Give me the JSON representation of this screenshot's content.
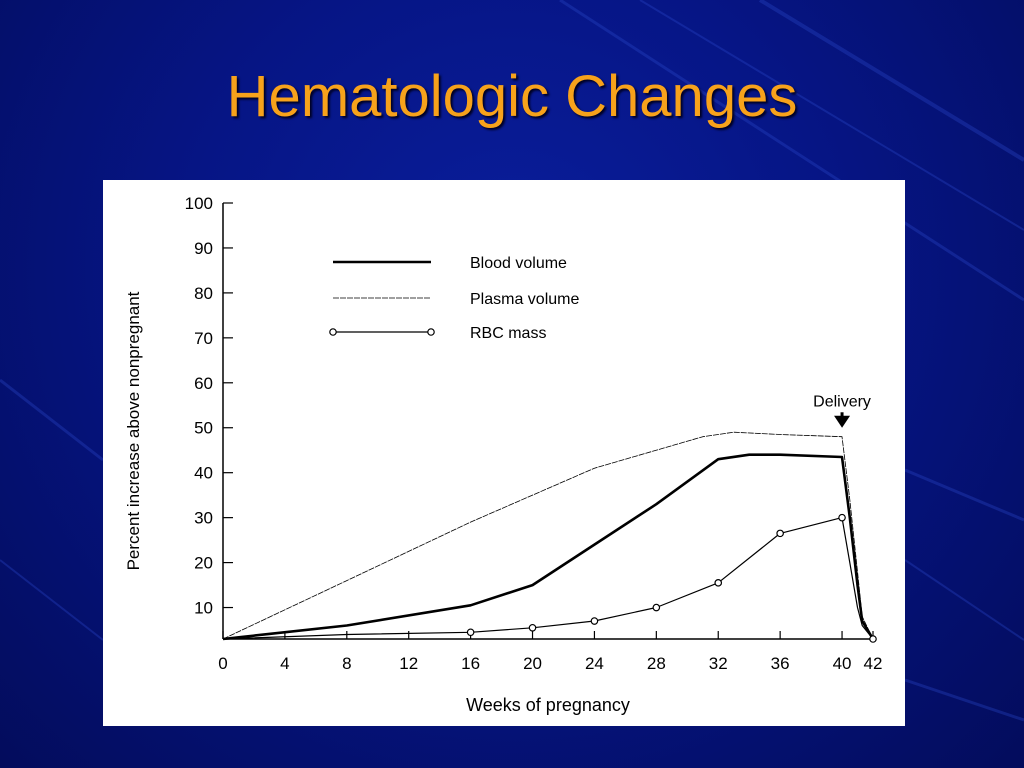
{
  "slide": {
    "title": "Hematologic Changes"
  },
  "colors": {
    "background": "#061585",
    "title": "#f7a21b",
    "panel": "#ffffff",
    "ink": "#000000"
  },
  "chart_data": {
    "type": "line",
    "title": "",
    "xlabel": "Weeks of pregnancy",
    "ylabel": "Percent increase above nonpregnant",
    "xlim": [
      0,
      42
    ],
    "ylim": [
      3,
      100
    ],
    "x_ticks": [
      0,
      4,
      8,
      12,
      16,
      20,
      24,
      28,
      32,
      36,
      40,
      42
    ],
    "y_ticks": [
      10,
      20,
      30,
      40,
      50,
      60,
      70,
      80,
      90,
      100
    ],
    "grid": false,
    "legend_position": "top-left",
    "series": [
      {
        "name": "Blood volume",
        "style": "thick",
        "x": [
          0,
          8,
          16,
          20,
          24,
          28,
          32,
          34,
          36,
          40,
          40.5,
          41,
          41.3,
          42
        ],
        "y": [
          3,
          6,
          10.5,
          15,
          24,
          33,
          43,
          44,
          44,
          43.5,
          30,
          15,
          7,
          3
        ]
      },
      {
        "name": "Plasma volume",
        "style": "thin",
        "x": [
          0,
          8,
          16,
          24,
          31,
          33,
          36,
          40,
          40.5,
          41,
          41.3,
          42
        ],
        "y": [
          3,
          16,
          29,
          41,
          48,
          49,
          48.5,
          48,
          34,
          18,
          8,
          3
        ]
      },
      {
        "name": "RBC mass",
        "style": "circles",
        "x": [
          0,
          8,
          16,
          20,
          24,
          28,
          32,
          36,
          40,
          40.5,
          41,
          41.3,
          42
        ],
        "y": [
          3,
          4,
          4.5,
          5.5,
          7,
          10,
          15.5,
          26.5,
          30,
          20,
          10,
          6,
          3
        ],
        "markers_x": [
          16,
          20,
          24,
          28,
          32,
          36,
          40,
          42
        ],
        "markers_y": [
          4.5,
          5.5,
          7,
          10,
          15.5,
          26.5,
          30,
          3
        ]
      }
    ],
    "annotations": [
      {
        "text": "Delivery",
        "x": 40,
        "y": 57,
        "arrow_to_y": 50
      }
    ]
  }
}
